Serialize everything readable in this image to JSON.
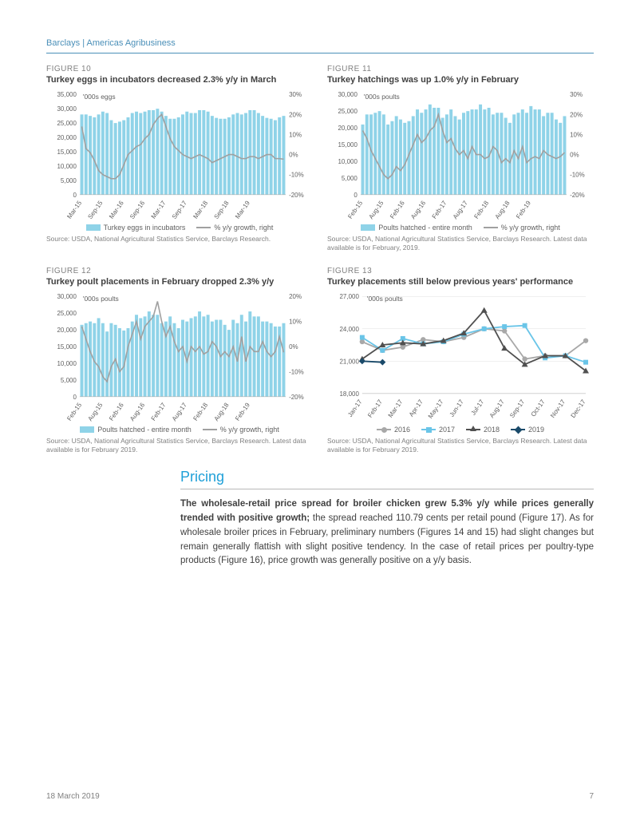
{
  "header": "Barclays | Americas Agribusiness",
  "footer": {
    "date": "18 March 2019",
    "page": "7"
  },
  "colors": {
    "bar": "#8fd3e8",
    "line_gray": "#a0a0a0",
    "accent_blue": "#1fa0d8",
    "header_blue": "#4a8fb8",
    "series_2016": "#a8a8a8",
    "series_2017": "#6ac5e8",
    "series_2018": "#505050",
    "series_2019": "#1a4a6a",
    "grid": "#e0e0e0"
  },
  "figures": {
    "f10": {
      "label": "FIGURE 10",
      "title": "Turkey eggs in incubators decreased 2.3% y/y in March",
      "unit": "'000s eggs",
      "y_left": {
        "min": 0,
        "max": 35000,
        "step": 5000
      },
      "y_right": {
        "min": -20,
        "max": 30,
        "step": 10,
        "suffix": "%"
      },
      "x_ticks": [
        "Mar-15",
        "Sep-15",
        "Mar-16",
        "Sep-16",
        "Mar-17",
        "Sep-17",
        "Mar-18",
        "Sep-18",
        "Mar-19"
      ],
      "bars": [
        28000,
        28000,
        27500,
        27000,
        28000,
        29000,
        28500,
        26000,
        25000,
        25500,
        26000,
        27000,
        28500,
        29000,
        28500,
        29000,
        29500,
        29500,
        30000,
        29000,
        27500,
        26500,
        26500,
        27000,
        28000,
        29000,
        28500,
        28500,
        29500,
        29500,
        29000,
        27500,
        26800,
        26500,
        26500,
        27000,
        28000,
        28500,
        28000,
        28500,
        29500,
        29500,
        28500,
        27500,
        26800,
        26500,
        26000,
        27000,
        27500
      ],
      "line": [
        14,
        3,
        1,
        -3,
        -8,
        -10,
        -11,
        -12,
        -12,
        -10,
        -5,
        0,
        2,
        4,
        5,
        8,
        10,
        15,
        18,
        20,
        14,
        8,
        4,
        2,
        0,
        -1,
        -2,
        -1,
        0,
        -1,
        -2,
        -4,
        -3,
        -2,
        -1,
        0,
        0,
        -1,
        -2,
        -2,
        -1,
        -1,
        -2,
        -1,
        0,
        0,
        -2,
        -2,
        -2.3
      ],
      "legend": [
        {
          "type": "box",
          "label": "Turkey eggs in incubators",
          "color": "#8fd3e8"
        },
        {
          "type": "line",
          "label": "% y/y growth, right",
          "color": "#a0a0a0"
        }
      ],
      "source": "Source: USDA, National Agricultural Statistics Service, Barclays Research."
    },
    "f11": {
      "label": "FIGURE 11",
      "title": "Turkey hatchings was up 1.0% y/y in February",
      "unit": "'000s poults",
      "y_left": {
        "min": 0,
        "max": 30000,
        "step": 5000
      },
      "y_right": {
        "min": -20,
        "max": 30,
        "step": 10,
        "suffix": "%"
      },
      "x_ticks": [
        "Feb-15",
        "Aug-15",
        "Feb-16",
        "Aug-16",
        "Feb-17",
        "Aug-17",
        "Feb-18",
        "Aug-18",
        "Feb-19"
      ],
      "bars": [
        21000,
        24000,
        24000,
        24500,
        25000,
        24000,
        21000,
        22000,
        23500,
        22500,
        21500,
        22000,
        23500,
        25500,
        24500,
        25500,
        27000,
        26000,
        26000,
        23000,
        24000,
        25500,
        23500,
        22500,
        24500,
        25000,
        25500,
        25500,
        27000,
        25500,
        26000,
        24000,
        24500,
        24500,
        23000,
        21500,
        24000,
        24500,
        25500,
        24500,
        26500,
        25500,
        25500,
        23500,
        24500,
        24500,
        22500,
        21500,
        23500
      ],
      "line": [
        12,
        8,
        2,
        -2,
        -6,
        -10,
        -12,
        -10,
        -6,
        -8,
        -5,
        0,
        5,
        10,
        6,
        8,
        12,
        14,
        20,
        12,
        6,
        8,
        3,
        0,
        2,
        -2,
        4,
        0,
        0,
        -2,
        -1,
        4,
        2,
        -4,
        -2,
        -4,
        2,
        -2,
        4,
        -4,
        -2,
        -1,
        -2,
        2,
        0,
        -1,
        -2,
        -1,
        1
      ],
      "legend": [
        {
          "type": "box",
          "label": "Poults hatched - entire month",
          "color": "#8fd3e8"
        },
        {
          "type": "line",
          "label": "% y/y growth, right",
          "color": "#a0a0a0"
        }
      ],
      "source": "Source: USDA, National Agricultural Statistics Service, Barclays Research. Latest data available is for February, 2019."
    },
    "f12": {
      "label": "FIGURE 12",
      "title": "Turkey poult placements in February dropped 2.3% y/y",
      "unit": "'000s poults",
      "y_left": {
        "min": 0,
        "max": 30000,
        "step": 5000
      },
      "y_right": {
        "min": -20,
        "max": 20,
        "step": 10,
        "suffix": "%"
      },
      "x_ticks": [
        "Feb-15",
        "Aug-15",
        "Feb-16",
        "Aug-16",
        "Feb-17",
        "Aug-17",
        "Feb-18",
        "Aug-18",
        "Feb-19"
      ],
      "bars": [
        21500,
        22000,
        22500,
        22000,
        23500,
        22000,
        19500,
        22000,
        21500,
        20500,
        19800,
        20500,
        22500,
        24500,
        23500,
        24000,
        25500,
        24500,
        24500,
        22000,
        22500,
        24000,
        22000,
        20500,
        23000,
        22500,
        23500,
        24000,
        25500,
        24000,
        24500,
        22500,
        23000,
        23000,
        21500,
        20000,
        23000,
        22000,
        24500,
        22500,
        25500,
        24000,
        24000,
        22500,
        22500,
        22000,
        21000,
        21000,
        22000
      ],
      "line": [
        8,
        3,
        -2,
        -6,
        -8,
        -12,
        -14,
        -8,
        -5,
        -10,
        -8,
        0,
        5,
        10,
        3,
        8,
        10,
        12,
        18,
        10,
        4,
        8,
        2,
        -2,
        0,
        -6,
        0,
        -2,
        0,
        -3,
        -2,
        2,
        0,
        -4,
        -2,
        -4,
        0,
        -6,
        4,
        -6,
        0,
        -2,
        -2,
        2,
        -2,
        -4,
        -2,
        4,
        -2.3
      ],
      "legend": [
        {
          "type": "box",
          "label": "Poults hatched - entire month",
          "color": "#8fd3e8"
        },
        {
          "type": "line",
          "label": "% y/y growth, right",
          "color": "#a0a0a0"
        }
      ],
      "source": "Source: USDA, National Agricultural Statistics Service, Barclays Research. Latest data available is for February 2019."
    },
    "f13": {
      "label": "FIGURE 13",
      "title": "Turkey placements still below previous years' performance",
      "unit": "'000s poults",
      "y_left": {
        "min": 18000,
        "max": 27000,
        "step": 3000
      },
      "x_ticks": [
        "Jan-17",
        "Feb-17",
        "Mar-17",
        "Apr-17",
        "May-17",
        "Jun-17",
        "Jul-17",
        "Aug-17",
        "Sep-17",
        "Oct-17",
        "Nov-17",
        "Dec-17"
      ],
      "series": [
        {
          "name": "2016",
          "color": "#a8a8a8",
          "marker": "circle",
          "values": [
            22800,
            22000,
            22300,
            23000,
            22800,
            23200,
            24000,
            23800,
            21200,
            21500,
            21500,
            22900
          ]
        },
        {
          "name": "2017",
          "color": "#6ac5e8",
          "marker": "square",
          "values": [
            23200,
            22000,
            23100,
            22600,
            22800,
            23500,
            24000,
            24200,
            24300,
            21300,
            21500,
            20900
          ]
        },
        {
          "name": "2018",
          "color": "#505050",
          "marker": "triangle",
          "values": [
            21200,
            22500,
            22700,
            22600,
            22900,
            23600,
            25700,
            22200,
            20700,
            21500,
            21500,
            20100
          ]
        },
        {
          "name": "2019",
          "color": "#1a4a6a",
          "marker": "diamond",
          "values": [
            21000,
            20900
          ]
        }
      ],
      "source": "Source: USDA, National Agricultural Statistics Service, Barclays Research. Latest data available is for February 2019."
    }
  },
  "section": {
    "title": "Pricing",
    "body_bold": "The wholesale-retail price spread for broiler chicken grew 5.3% y/y while prices generally trended with positive growth;",
    "body_rest": " the spread reached 110.79 cents per retail pound (Figure 17). As for wholesale broiler prices in February, preliminary numbers (Figures 14 and 15) had slight changes but remain generally flattish with slight positive tendency. In the case of retail prices per poultry-type products (Figure 16), price growth was generally positive on a y/y basis."
  }
}
